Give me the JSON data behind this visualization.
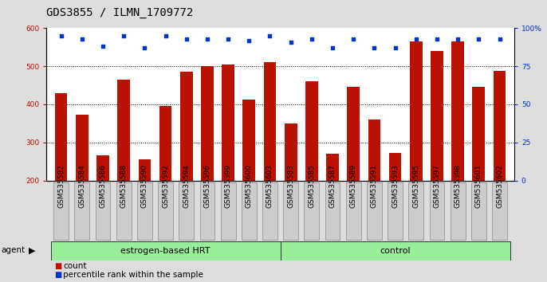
{
  "title": "GDS3855 / ILMN_1709772",
  "samples": [
    "GSM535582",
    "GSM535584",
    "GSM535586",
    "GSM535588",
    "GSM535590",
    "GSM535592",
    "GSM535594",
    "GSM535596",
    "GSM535599",
    "GSM535600",
    "GSM535603",
    "GSM535583",
    "GSM535585",
    "GSM535587",
    "GSM535589",
    "GSM535591",
    "GSM535593",
    "GSM535595",
    "GSM535597",
    "GSM535598",
    "GSM535601",
    "GSM535602"
  ],
  "counts": [
    430,
    372,
    265,
    465,
    255,
    395,
    485,
    500,
    505,
    412,
    510,
    350,
    460,
    270,
    447,
    360,
    272,
    565,
    540,
    565,
    447,
    488
  ],
  "percentiles": [
    95,
    93,
    88,
    95,
    87,
    95,
    93,
    93,
    93,
    92,
    95,
    91,
    93,
    87,
    93,
    87,
    87,
    93,
    93,
    93,
    93,
    93
  ],
  "groups": [
    "estrogen-based HRT",
    "estrogen-based HRT",
    "estrogen-based HRT",
    "estrogen-based HRT",
    "estrogen-based HRT",
    "estrogen-based HRT",
    "estrogen-based HRT",
    "estrogen-based HRT",
    "estrogen-based HRT",
    "estrogen-based HRT",
    "estrogen-based HRT",
    "control",
    "control",
    "control",
    "control",
    "control",
    "control",
    "control",
    "control",
    "control",
    "control",
    "control"
  ],
  "bar_color": "#BB1100",
  "dot_color": "#0033CC",
  "ylim_left": [
    200,
    600
  ],
  "ylim_right": [
    0,
    100
  ],
  "yticks_left": [
    200,
    300,
    400,
    500,
    600
  ],
  "yticks_right": [
    0,
    25,
    50,
    75,
    100
  ],
  "ytick_labels_right": [
    "0",
    "25",
    "50",
    "75",
    "100%"
  ],
  "background_color": "#dddddd",
  "plot_bg_color": "#ffffff",
  "title_fontsize": 10,
  "tick_fontsize": 6.5,
  "legend_count_label": "count",
  "legend_pct_label": "percentile rank within the sample",
  "green_color": "#99EE99",
  "xtick_box_color": "#cccccc"
}
